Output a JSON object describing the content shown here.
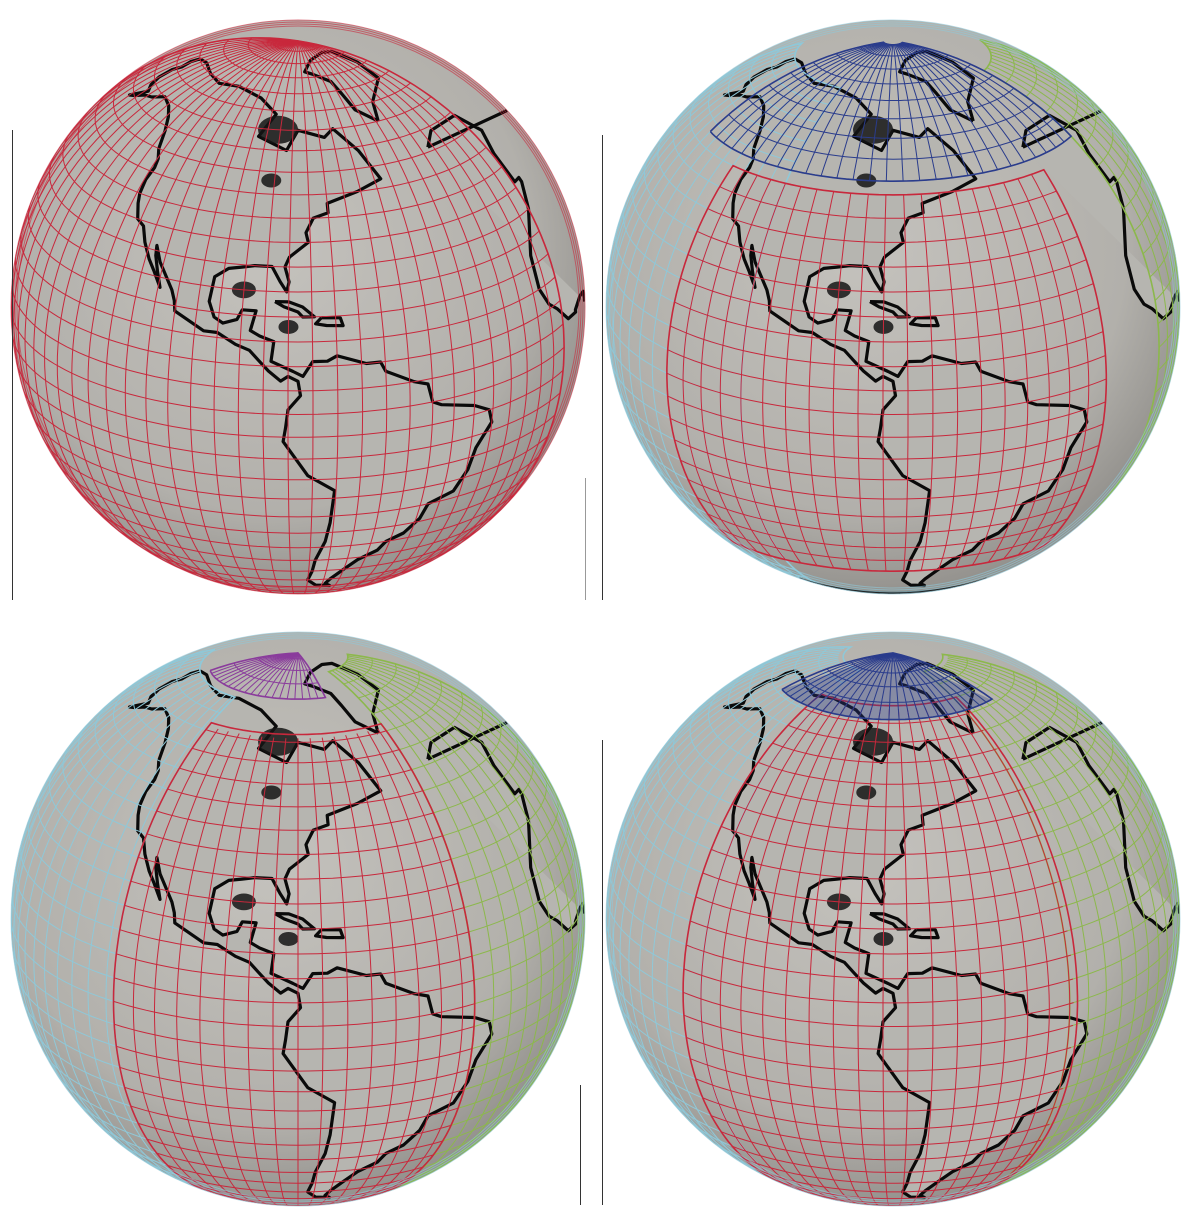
{
  "panels": [
    {
      "name": "globe-single-grid",
      "grids": [
        {
          "id": "red",
          "color": "#c8283c",
          "lat": [
            -90,
            90
          ],
          "lon": [
            -190,
            -10
          ]
        }
      ]
    },
    {
      "name": "globe-yin-yang-polar-caps",
      "grids": [
        {
          "id": "cyan",
          "color": "#8fc8d8",
          "lat": [
            -70,
            70
          ],
          "lon": [
            -190,
            -110
          ]
        },
        {
          "id": "green",
          "color": "#8cb84c",
          "lat": [
            -70,
            70
          ],
          "lon": [
            -10,
            40
          ]
        },
        {
          "id": "red",
          "color": "#c8283c",
          "lat": [
            -45,
            45
          ],
          "lon": [
            -130,
            -30
          ]
        },
        {
          "id": "blue",
          "color": "#2a3c8c",
          "lat": [
            48,
            88
          ],
          "lon": [
            -150,
            -10
          ]
        },
        {
          "id": "black",
          "color": "#202020",
          "lat": [
            -88,
            -62
          ],
          "lon": [
            -170,
            -30
          ]
        }
      ]
    },
    {
      "name": "globe-cubed-sphere",
      "grids": [
        {
          "id": "cyan",
          "color": "#8fc8d8",
          "lat": [
            -80,
            70
          ],
          "lon": [
            -200,
            -118
          ]
        },
        {
          "id": "green",
          "color": "#8cb84c",
          "lat": [
            -80,
            80
          ],
          "lon": [
            -40,
            20
          ]
        },
        {
          "id": "red",
          "color": "#c8283c",
          "lat": [
            -85,
            62
          ],
          "lon": [
            -118,
            -40
          ]
        },
        {
          "id": "purple",
          "color": "#8a3c9c",
          "lat": [
            72,
            90
          ],
          "lon": [
            -160,
            -60
          ]
        }
      ]
    },
    {
      "name": "globe-overset-grid",
      "grids": [
        {
          "id": "cyan",
          "color": "#8fc8d8",
          "lat": [
            -85,
            80
          ],
          "lon": [
            -200,
            -120
          ]
        },
        {
          "id": "green",
          "color": "#8cb84c",
          "lat": [
            -85,
            80
          ],
          "lon": [
            -40,
            20
          ]
        },
        {
          "id": "red",
          "color": "#c8283c",
          "lat": [
            -85,
            70
          ],
          "lon": [
            -125,
            -38
          ]
        },
        {
          "id": "blue",
          "color": "#2a3c8c",
          "lat": [
            66,
            90
          ],
          "lon": [
            -150,
            -20
          ]
        }
      ]
    }
  ]
}
